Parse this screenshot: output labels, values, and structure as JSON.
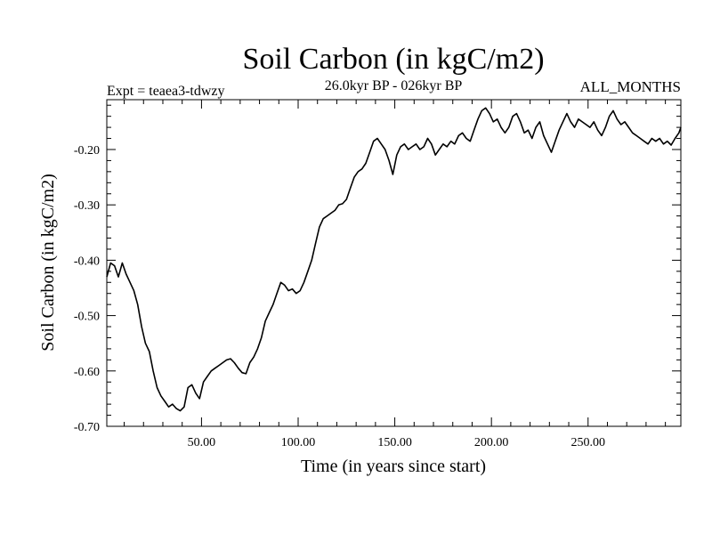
{
  "chart_data": {
    "type": "line",
    "title": "Soil Carbon (in kgC/m2)",
    "subtitle": "26.0kyr BP - 026kyr BP",
    "experiment_label": "Expt = teaea3-tdwzy",
    "period_label": "ALL_MONTHS",
    "xlabel": "Time (in years since start)",
    "ylabel": "Soil Carbon (in kgC/m2)",
    "xlim": [
      1,
      298
    ],
    "ylim": [
      -0.7,
      -0.11
    ],
    "x_ticks": [
      50,
      100,
      150,
      200,
      250
    ],
    "x_tick_labels": [
      "50.00",
      "100.00",
      "150.00",
      "200.00",
      "250.00"
    ],
    "y_ticks": [
      -0.7,
      -0.6,
      -0.5,
      -0.4,
      -0.3,
      -0.2
    ],
    "y_tick_labels": [
      "-0.70",
      "-0.60",
      "-0.50",
      "-0.40",
      "-0.30",
      "-0.20"
    ],
    "series": [
      {
        "name": "Soil Carbon",
        "color": "#000000",
        "x": [
          1,
          3,
          5,
          7,
          9,
          11,
          13,
          15,
          17,
          19,
          21,
          23,
          25,
          27,
          29,
          31,
          33,
          35,
          37,
          39,
          41,
          43,
          45,
          47,
          49,
          51,
          53,
          55,
          57,
          59,
          61,
          63,
          65,
          67,
          69,
          71,
          73,
          75,
          77,
          79,
          81,
          83,
          85,
          87,
          89,
          91,
          93,
          95,
          97,
          99,
          101,
          103,
          105,
          107,
          109,
          111,
          113,
          115,
          117,
          119,
          121,
          123,
          125,
          127,
          129,
          131,
          133,
          135,
          137,
          139,
          141,
          143,
          145,
          147,
          149,
          151,
          153,
          155,
          157,
          159,
          161,
          163,
          165,
          167,
          169,
          171,
          173,
          175,
          177,
          179,
          181,
          183,
          185,
          187,
          189,
          191,
          193,
          195,
          197,
          199,
          201,
          203,
          205,
          207,
          209,
          211,
          213,
          215,
          217,
          219,
          221,
          223,
          225,
          227,
          229,
          231,
          233,
          235,
          237,
          239,
          241,
          243,
          245,
          247,
          249,
          251,
          253,
          255,
          257,
          259,
          261,
          263,
          265,
          267,
          269,
          271,
          273,
          275,
          277,
          279,
          281,
          283,
          285,
          287,
          289,
          291,
          293,
          295,
          297,
          298
        ],
        "y": [
          -0.43,
          -0.405,
          -0.41,
          -0.43,
          -0.405,
          -0.425,
          -0.44,
          -0.455,
          -0.48,
          -0.52,
          -0.55,
          -0.565,
          -0.6,
          -0.63,
          -0.645,
          -0.655,
          -0.665,
          -0.66,
          -0.668,
          -0.672,
          -0.665,
          -0.63,
          -0.625,
          -0.64,
          -0.65,
          -0.62,
          -0.61,
          -0.6,
          -0.595,
          -0.59,
          -0.585,
          -0.58,
          -0.578,
          -0.585,
          -0.595,
          -0.603,
          -0.605,
          -0.585,
          -0.575,
          -0.56,
          -0.54,
          -0.51,
          -0.495,
          -0.48,
          -0.46,
          -0.44,
          -0.445,
          -0.455,
          -0.452,
          -0.46,
          -0.455,
          -0.44,
          -0.42,
          -0.4,
          -0.37,
          -0.34,
          -0.325,
          -0.32,
          -0.315,
          -0.31,
          -0.3,
          -0.298,
          -0.29,
          -0.27,
          -0.25,
          -0.24,
          -0.235,
          -0.225,
          -0.205,
          -0.185,
          -0.18,
          -0.19,
          -0.2,
          -0.22,
          -0.245,
          -0.21,
          -0.195,
          -0.19,
          -0.2,
          -0.195,
          -0.19,
          -0.2,
          -0.195,
          -0.18,
          -0.19,
          -0.21,
          -0.2,
          -0.19,
          -0.195,
          -0.185,
          -0.19,
          -0.175,
          -0.17,
          -0.18,
          -0.185,
          -0.165,
          -0.145,
          -0.13,
          -0.125,
          -0.135,
          -0.15,
          -0.145,
          -0.16,
          -0.17,
          -0.16,
          -0.14,
          -0.135,
          -0.15,
          -0.17,
          -0.165,
          -0.18,
          -0.16,
          -0.15,
          -0.175,
          -0.19,
          -0.205,
          -0.185,
          -0.165,
          -0.15,
          -0.135,
          -0.15,
          -0.16,
          -0.145,
          -0.15,
          -0.155,
          -0.16,
          -0.15,
          -0.165,
          -0.175,
          -0.16,
          -0.14,
          -0.13,
          -0.145,
          -0.155,
          -0.15,
          -0.16,
          -0.17,
          -0.175,
          -0.18,
          -0.185,
          -0.19,
          -0.18,
          -0.185,
          -0.18,
          -0.19,
          -0.185,
          -0.192,
          -0.18,
          -0.17,
          -0.16
        ]
      }
    ]
  }
}
